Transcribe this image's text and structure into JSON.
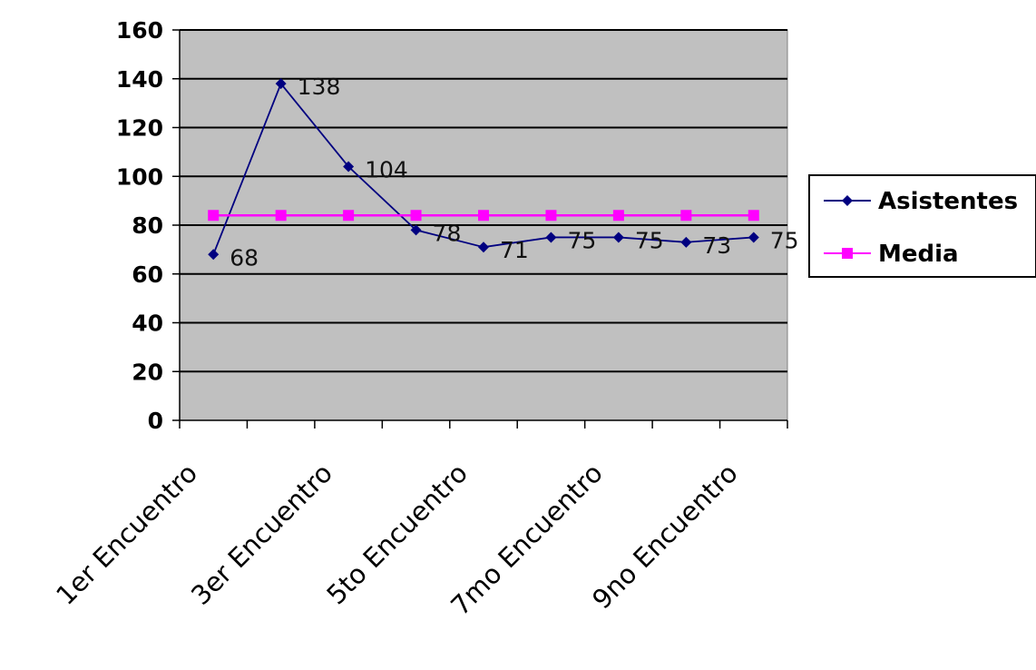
{
  "chart_data": {
    "type": "line",
    "categories": [
      "1er Encuentro",
      "",
      "3er Encuentro",
      "",
      "5to Encuentro",
      "",
      "7mo Encuentro",
      "",
      "9no Encuentro"
    ],
    "series": [
      {
        "name": "Asistentes",
        "values": [
          68,
          138,
          104,
          78,
          71,
          75,
          75,
          73,
          75
        ],
        "color": "#000080",
        "marker": "diamond",
        "labels": [
          "68",
          "138",
          "104",
          "78",
          "71",
          "75",
          "75",
          "73",
          "75"
        ]
      },
      {
        "name": "Media",
        "values": [
          84,
          84,
          84,
          84,
          84,
          84,
          84,
          84,
          84
        ],
        "color": "#ff00ff",
        "marker": "square"
      }
    ],
    "yticks": [
      "0",
      "20",
      "40",
      "60",
      "80",
      "100",
      "120",
      "140",
      "160"
    ],
    "ylim": [
      0,
      160
    ],
    "grid": true,
    "plot_background": "#c0c0c0",
    "legend_position": "right"
  }
}
